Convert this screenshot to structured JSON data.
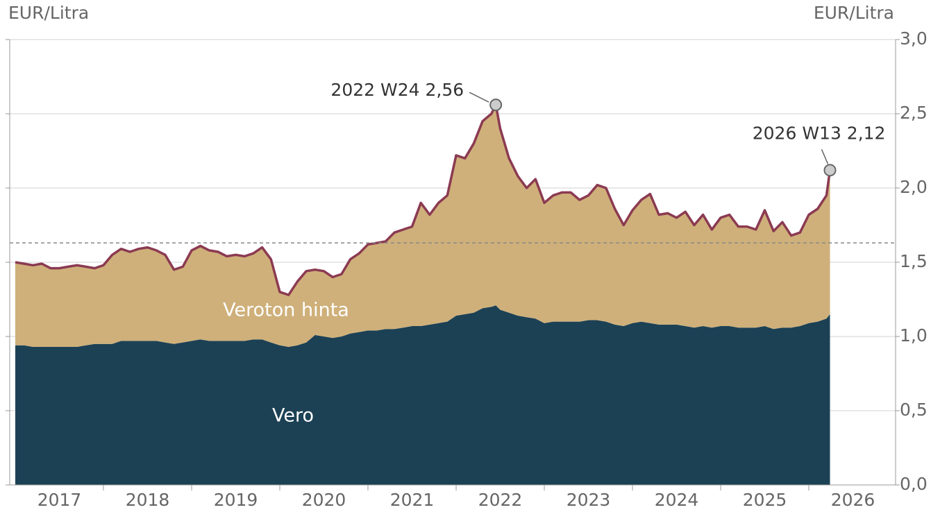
{
  "chart_data": {
    "type": "stacked_area",
    "ylabel_left": "EUR/Litra",
    "ylabel_right": "EUR/Litra",
    "x": [
      2017.0,
      2017.1,
      2017.2,
      2017.3,
      2017.4,
      2017.5,
      2017.6,
      2017.7,
      2017.8,
      2017.9,
      2018.0,
      2018.1,
      2018.2,
      2018.3,
      2018.4,
      2018.5,
      2018.6,
      2018.7,
      2018.8,
      2018.9,
      2019.0,
      2019.1,
      2019.2,
      2019.3,
      2019.4,
      2019.5,
      2019.6,
      2019.7,
      2019.8,
      2019.9,
      2020.0,
      2020.1,
      2020.2,
      2020.3,
      2020.4,
      2020.5,
      2020.6,
      2020.7,
      2020.8,
      2020.9,
      2021.0,
      2021.1,
      2021.2,
      2021.3,
      2021.4,
      2021.5,
      2021.6,
      2021.7,
      2021.8,
      2021.9,
      2022.0,
      2022.1,
      2022.2,
      2022.3,
      2022.4,
      2022.45,
      2022.5,
      2022.6,
      2022.7,
      2022.8,
      2022.9,
      2023.0,
      2023.1,
      2023.2,
      2023.3,
      2023.4,
      2023.5,
      2023.6,
      2023.7,
      2023.8,
      2023.9,
      2024.0,
      2024.1,
      2024.2,
      2024.3,
      2024.4,
      2024.5,
      2024.6,
      2024.7,
      2024.8,
      2024.9,
      2025.0,
      2025.1,
      2025.2,
      2025.3,
      2025.4,
      2025.5,
      2025.6,
      2025.7,
      2025.8,
      2025.9,
      2026.0,
      2026.1,
      2026.2,
      2026.24
    ],
    "series": [
      {
        "name": "Vero",
        "color": "#1c4155",
        "values": [
          0.94,
          0.94,
          0.93,
          0.93,
          0.93,
          0.93,
          0.93,
          0.93,
          0.94,
          0.95,
          0.95,
          0.95,
          0.97,
          0.97,
          0.97,
          0.97,
          0.97,
          0.96,
          0.95,
          0.96,
          0.97,
          0.98,
          0.97,
          0.97,
          0.97,
          0.97,
          0.97,
          0.98,
          0.98,
          0.96,
          0.94,
          0.93,
          0.94,
          0.96,
          1.01,
          1.0,
          0.99,
          1.0,
          1.02,
          1.03,
          1.04,
          1.04,
          1.05,
          1.05,
          1.06,
          1.07,
          1.07,
          1.08,
          1.09,
          1.1,
          1.14,
          1.15,
          1.16,
          1.19,
          1.2,
          1.21,
          1.18,
          1.16,
          1.14,
          1.13,
          1.12,
          1.09,
          1.1,
          1.1,
          1.1,
          1.1,
          1.11,
          1.11,
          1.1,
          1.08,
          1.07,
          1.09,
          1.1,
          1.09,
          1.08,
          1.08,
          1.08,
          1.07,
          1.06,
          1.07,
          1.06,
          1.07,
          1.07,
          1.06,
          1.06,
          1.06,
          1.07,
          1.05,
          1.06,
          1.06,
          1.07,
          1.09,
          1.1,
          1.12,
          1.15
        ]
      },
      {
        "name": "Veroton hinta",
        "color": "#cfb07a",
        "line_color": "#8b3a52",
        "values": [
          0.56,
          0.55,
          0.55,
          0.56,
          0.53,
          0.53,
          0.54,
          0.55,
          0.53,
          0.51,
          0.53,
          0.6,
          0.62,
          0.6,
          0.62,
          0.63,
          0.61,
          0.59,
          0.5,
          0.51,
          0.61,
          0.63,
          0.61,
          0.6,
          0.57,
          0.58,
          0.57,
          0.58,
          0.62,
          0.56,
          0.36,
          0.35,
          0.43,
          0.48,
          0.44,
          0.44,
          0.41,
          0.42,
          0.5,
          0.53,
          0.58,
          0.59,
          0.59,
          0.65,
          0.66,
          0.67,
          0.83,
          0.74,
          0.81,
          0.85,
          1.08,
          1.05,
          1.14,
          1.26,
          1.3,
          1.35,
          1.22,
          1.04,
          0.94,
          0.87,
          0.94,
          0.81,
          0.85,
          0.87,
          0.87,
          0.82,
          0.84,
          0.91,
          0.9,
          0.78,
          0.68,
          0.76,
          0.82,
          0.87,
          0.74,
          0.75,
          0.72,
          0.77,
          0.69,
          0.75,
          0.66,
          0.73,
          0.75,
          0.68,
          0.68,
          0.66,
          0.78,
          0.66,
          0.71,
          0.62,
          0.63,
          0.73,
          0.76,
          0.83,
          0.97
        ]
      }
    ],
    "xlim": [
      2017,
      2027
    ],
    "xticks": [
      2017,
      2018,
      2019,
      2020,
      2021,
      2022,
      2023,
      2024,
      2025,
      2026
    ],
    "ylim": [
      0,
      3
    ],
    "yticks": [
      {
        "value": 0,
        "label": "0,0"
      },
      {
        "value": 0.5,
        "label": "0,5"
      },
      {
        "value": 1,
        "label": "1,0"
      },
      {
        "value": 1.5,
        "label": "1,5"
      },
      {
        "value": 2,
        "label": "2,0"
      },
      {
        "value": 2.5,
        "label": "2,5"
      },
      {
        "value": 3,
        "label": "3,0"
      }
    ],
    "grid": true,
    "reference_line": 1.63,
    "annotations": [
      {
        "text": "2022 W24 2,56",
        "x": 2022.45,
        "y": 2.56
      },
      {
        "text": "2026 W13 2,12",
        "x": 2026.24,
        "y": 2.12
      }
    ]
  }
}
